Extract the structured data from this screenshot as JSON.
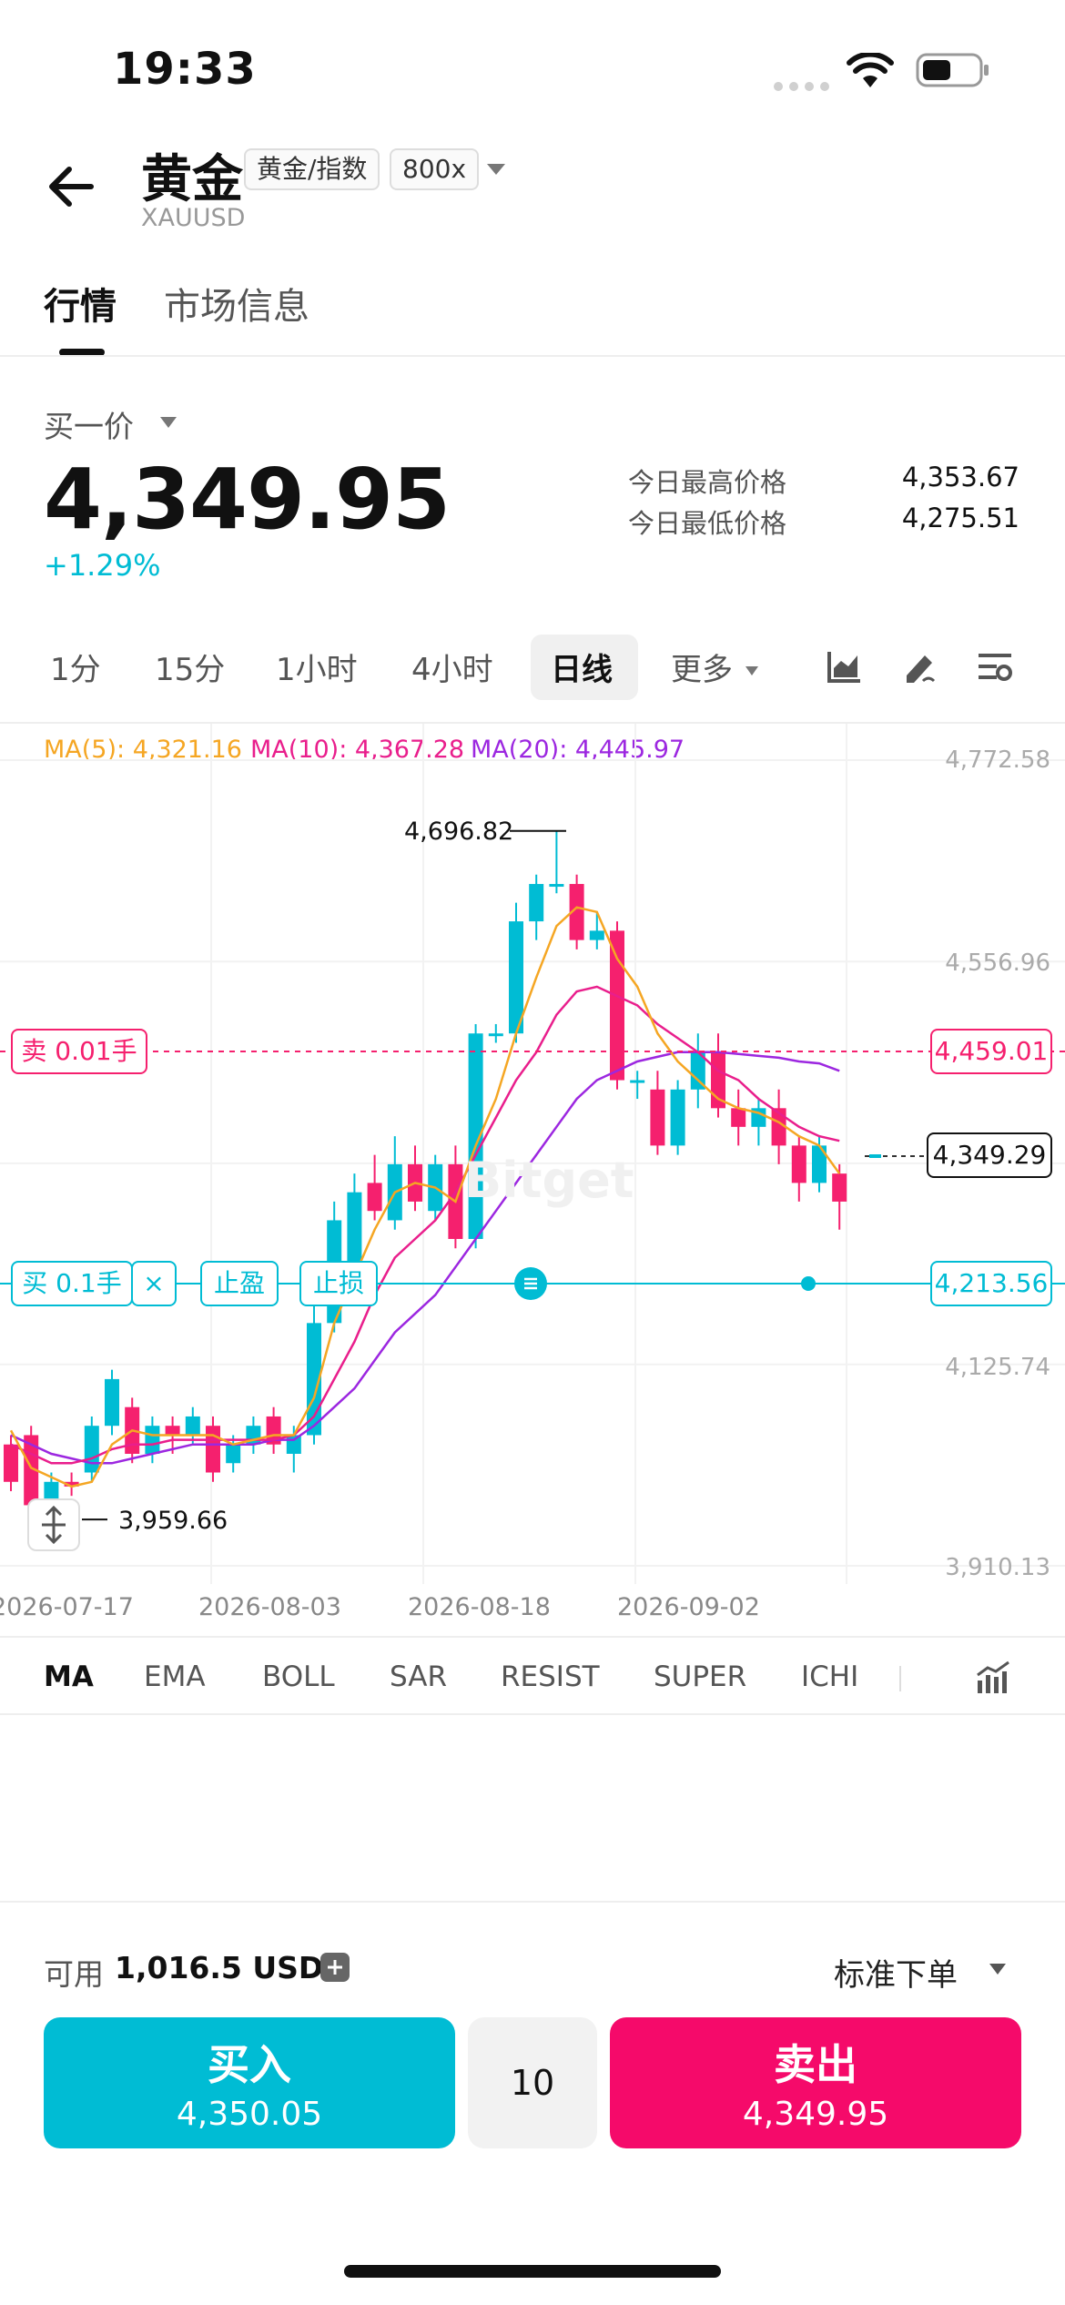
{
  "status": {
    "time": "19:33"
  },
  "header": {
    "title": "黄金",
    "tag_type": "黄金/指数",
    "tag_leverage": "800x",
    "symbol": "XAUUSD"
  },
  "tabs": [
    {
      "label": "行情",
      "active": true
    },
    {
      "label": "市场信息",
      "active": false
    }
  ],
  "quote": {
    "price_type": "买一价",
    "price": "4,349.95",
    "change": "+1.29%",
    "high_label": "今日最高价格",
    "high": "4,353.67",
    "low_label": "今日最低价格",
    "low": "4,275.51"
  },
  "timeframes": [
    "1分",
    "15分",
    "1小时",
    "4小时",
    "日线",
    "更多"
  ],
  "active_timeframe": "日线",
  "ma_legend": {
    "ma5": "MA(5): 4,321.16",
    "ma10": "MA(10): 4,367.28",
    "ma20": "MA(20): 4,445.97"
  },
  "chart_overlay": {
    "sell_order_label": "卖 0.01手",
    "sell_price": "4,459.01",
    "buy_order_label": "买 0.1手",
    "close_symbol": "×",
    "take_profit": "止盈",
    "stop_loss": "止损",
    "buy_price": "4,213.56",
    "current_price": "4,349.29",
    "max_label": "4,696.82",
    "min_label": "3,959.66",
    "watermark": "Bitget"
  },
  "indicators": [
    "MA",
    "EMA",
    "BOLL",
    "SAR",
    "RESIST",
    "SUPER",
    "ICHI"
  ],
  "active_indicator": "MA",
  "order": {
    "available_label": "可用",
    "available_value": "1,016.5 USDT",
    "mode": "标准下单",
    "buy_label": "买入",
    "buy_price": "4,350.05",
    "leverage": "10",
    "sell_label": "卖出",
    "sell_price": "4,349.95"
  },
  "colors": {
    "up": "#00bcd4",
    "down": "#f5206e",
    "ma5": "#f5a623",
    "ma10": "#e91e8c",
    "ma20": "#9c27e0"
  },
  "chart_data": {
    "type": "candlestick",
    "x_ticks": [
      "2026-07-17",
      "2026-08-03",
      "2026-08-18",
      "2026-09-02"
    ],
    "y_ticks": [
      "4,772.58",
      "4,556.96",
      "4,125.74",
      "3,910.13"
    ],
    "ylim": [
      3910.13,
      4772.58
    ],
    "candles": [
      [
        4040,
        4000,
        4050,
        3990
      ],
      [
        4050,
        3975,
        4060,
        3965
      ],
      [
        3975,
        4000,
        4010,
        3960
      ],
      [
        4000,
        3995,
        4010,
        3985
      ],
      [
        4010,
        4060,
        4070,
        4000
      ],
      [
        4060,
        4110,
        4120,
        4050
      ],
      [
        4080,
        4030,
        4090,
        4020
      ],
      [
        4030,
        4060,
        4070,
        4020
      ],
      [
        4060,
        4050,
        4070,
        4030
      ],
      [
        4050,
        4070,
        4080,
        4040
      ],
      [
        4060,
        4010,
        4070,
        4000
      ],
      [
        4020,
        4040,
        4050,
        4010
      ],
      [
        4040,
        4060,
        4070,
        4030
      ],
      [
        4070,
        4040,
        4080,
        4030
      ],
      [
        4030,
        4050,
        4060,
        4010
      ],
      [
        4050,
        4170,
        4210,
        4040
      ],
      [
        4170,
        4280,
        4300,
        4160
      ],
      [
        4220,
        4310,
        4330,
        4200
      ],
      [
        4320,
        4290,
        4350,
        4280
      ],
      [
        4280,
        4340,
        4370,
        4270
      ],
      [
        4340,
        4300,
        4360,
        4290
      ],
      [
        4290,
        4340,
        4350,
        4280
      ],
      [
        4340,
        4260,
        4360,
        4250
      ],
      [
        4260,
        4480,
        4490,
        4250
      ],
      [
        4480,
        4480,
        4490,
        4470
      ],
      [
        4480,
        4600,
        4620,
        4470
      ],
      [
        4600,
        4640,
        4650,
        4580
      ],
      [
        4640,
        4640,
        4696.82,
        4630
      ],
      [
        4640,
        4580,
        4650,
        4570
      ],
      [
        4580,
        4590,
        4610,
        4570
      ],
      [
        4590,
        4430,
        4600,
        4420
      ],
      [
        4430,
        4430,
        4440,
        4410
      ],
      [
        4420,
        4360,
        4440,
        4350
      ],
      [
        4360,
        4420,
        4430,
        4350
      ],
      [
        4420,
        4460,
        4480,
        4400
      ],
      [
        4460,
        4400,
        4480,
        4390
      ],
      [
        4400,
        4380,
        4420,
        4360
      ],
      [
        4380,
        4400,
        4410,
        4360
      ],
      [
        4400,
        4360,
        4420,
        4340
      ],
      [
        4360,
        4320,
        4370,
        4300
      ],
      [
        4320,
        4360,
        4370,
        4310
      ],
      [
        4330,
        4300,
        4340,
        4270
      ]
    ],
    "ma5": [
      4055,
      4015,
      4005,
      3995,
      4000,
      4040,
      4055,
      4050,
      4050,
      4050,
      4050,
      4040,
      4045,
      4050,
      4050,
      4090,
      4170,
      4220,
      4270,
      4310,
      4320,
      4315,
      4300,
      4360,
      4410,
      4480,
      4540,
      4595,
      4615,
      4610,
      4560,
      4530,
      4480,
      4450,
      4430,
      4410,
      4400,
      4395,
      4385,
      4370,
      4360,
      4330
    ],
    "ma10": [
      4040,
      4030,
      4020,
      4020,
      4025,
      4035,
      4040,
      4040,
      4045,
      4045,
      4045,
      4045,
      4045,
      4045,
      4050,
      4070,
      4110,
      4150,
      4200,
      4240,
      4260,
      4280,
      4310,
      4350,
      4390,
      4430,
      4460,
      4500,
      4525,
      4530,
      4520,
      4510,
      4490,
      4475,
      4460,
      4440,
      4430,
      4410,
      4395,
      4380,
      4370,
      4365
    ],
    "ma20": [
      4050,
      4040,
      4030,
      4025,
      4020,
      4020,
      4025,
      4030,
      4035,
      4040,
      4040,
      4040,
      4040,
      4045,
      4045,
      4060,
      4080,
      4100,
      4130,
      4160,
      4180,
      4200,
      4230,
      4260,
      4290,
      4320,
      4350,
      4380,
      4410,
      4430,
      4440,
      4450,
      4455,
      4460,
      4460,
      4460,
      4458,
      4456,
      4454,
      4450,
      4448,
      4440
    ]
  }
}
